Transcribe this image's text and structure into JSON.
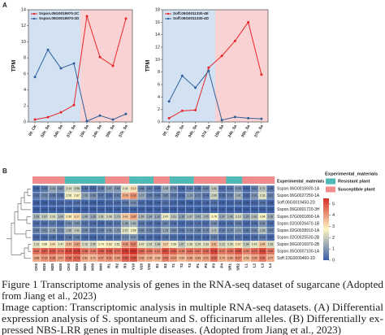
{
  "panels": [
    "A",
    "B"
  ],
  "chart_data": [
    {
      "type": "line",
      "categories": [
        "00_CK",
        "02h_Sa",
        "04h_Sa",
        "07d_Sa",
        "15h_Sa",
        "24h_Sa",
        "30h_Sa",
        "37h_Sa"
      ],
      "series": [
        {
          "name": "Sspon.05G0019970-2C",
          "color": "#e8262a",
          "values": [
            0.3,
            0.6,
            1.2,
            2.1,
            13.2,
            8.1,
            7.0,
            12.9
          ]
        },
        {
          "name": "Sspon.05G0019970-2D",
          "color": "#2f5f9a",
          "values": [
            5.6,
            9.0,
            6.7,
            7.3,
            0.1,
            0.8,
            0.3,
            1.0
          ]
        }
      ],
      "ylabel": "TPM",
      "ylim": [
        0,
        14
      ],
      "yticks": [
        0,
        2,
        4,
        6,
        8,
        10,
        12,
        14
      ],
      "background_colors": [
        "#d3e2f2",
        "#f9d3d3"
      ]
    },
    {
      "type": "line",
      "categories": [
        "00_CK",
        "02h_Sa",
        "04h_Sa",
        "07d_Sa",
        "15h_Sa",
        "24h_Sa",
        "30h_Sa",
        "37h_Sa"
      ],
      "series": [
        {
          "name": "Soff.05G0011330-4E",
          "color": "#e8262a",
          "values": [
            0.6,
            1.8,
            1.9,
            8.7,
            10.6,
            13.0,
            16.0,
            7.6
          ]
        },
        {
          "name": "Soff.05G0011330-4D",
          "color": "#2f5f9a",
          "values": [
            3.3,
            7.4,
            5.5,
            8.2,
            0.3,
            0.8,
            0.6,
            0.5
          ]
        }
      ],
      "ylabel": "TPM",
      "ylim": [
        0,
        18
      ],
      "yticks": [
        0,
        2,
        4,
        6,
        8,
        10,
        12,
        14,
        16,
        18
      ],
      "background_colors": [
        "#d3e2f2",
        "#f9d3d3"
      ]
    },
    {
      "type": "heatmap",
      "rows": [
        "Sspon.06G0016930-1A",
        "Sspon.06G0027250-1A",
        "Soff.06G0019450-2D",
        "Sspon.06G0001720-3H",
        "Sspon.07G0001800-1A",
        "Sspon.02G0026470-1B",
        "Sspon.02G0028910-1A",
        "Sspon.02G0025530-2B",
        "Sspon.06G0016970-2B",
        "Sspon.05G0007100-1A",
        "Soff.10G0000460-1D"
      ],
      "columns": [
        "CK0",
        "M10",
        "M20",
        "M30",
        "CK0",
        "M10",
        "M20",
        "M30",
        "M40",
        "R1",
        "R2",
        "R3",
        "V10",
        "V20",
        "V30",
        "E1",
        "E2",
        "T1",
        "T2",
        "T3",
        "P1",
        "P2",
        "P3",
        "P4",
        "SR1",
        "SR2",
        "L1",
        "L2",
        "L3",
        "L4"
      ],
      "values": [
        [
          0.12,
          0.45,
          1.23,
          0.87,
          2.14,
          1.96,
          0.33,
          0.21,
          0.58,
          1.07,
          0.94,
          2.41,
          3.12,
          0.66,
          0.47,
          0.29,
          1.38,
          0.75,
          0.18,
          0.52,
          0.36,
          0.69,
          1.84,
          0.27,
          0.41,
          0.93,
          0.15,
          0.62,
          1.71,
          0.38
        ],
        [
          0.41,
          0.73,
          0.55,
          0.39,
          2.56,
          2.87,
          1.19,
          0.88,
          0.47,
          0.34,
          0.62,
          3.78,
          4.18,
          1.27,
          0.59,
          0.46,
          0.82,
          0.53,
          0.24,
          1.13,
          0.71,
          0.44,
          2.06,
          0.35,
          0.57,
          1.41,
          0.28,
          0.91,
          2.33,
          0.67
        ],
        [
          0.08,
          0.06,
          0.11,
          0.13,
          0.27,
          0.35,
          0.16,
          0.09,
          0.07,
          0.19,
          0.24,
          0.48,
          0.83,
          0.21,
          0.12,
          0.14,
          0.31,
          0.17,
          0.05,
          0.09,
          0.11,
          0.18,
          0.36,
          0.07,
          0.13,
          0.26,
          0.04,
          0.15,
          0.42,
          0.08
        ],
        [
          0.02,
          0.01,
          0.03,
          0.02,
          0.07,
          0.05,
          0.01,
          0.02,
          0.04,
          0.03,
          0.06,
          0.11,
          0.09,
          0.02,
          0.01,
          0.03,
          0.05,
          0.02,
          0.01,
          0.04,
          0.02,
          0.03,
          0.08,
          0.01,
          0.02,
          0.06,
          0.01,
          0.03,
          0.07,
          0.02
        ],
        [
          1.52,
          1.87,
          2.23,
          1.64,
          2.95,
          3.17,
          1.46,
          1.28,
          1.91,
          2.06,
          1.73,
          3.41,
          3.86,
          1.59,
          1.34,
          1.22,
          2.47,
          1.81,
          1.16,
          1.67,
          1.43,
          1.55,
          2.78,
          1.37,
          1.49,
          2.19,
          1.26,
          1.62,
          2.64,
          1.39
        ],
        [
          0.26,
          0.31,
          0.47,
          0.22,
          0.81,
          0.93,
          0.37,
          0.28,
          0.19,
          0.33,
          0.41,
          1.26,
          1.54,
          0.43,
          0.32,
          0.25,
          0.67,
          0.38,
          0.17,
          0.29,
          0.34,
          0.27,
          0.86,
          0.23,
          0.31,
          0.58,
          0.18,
          0.36,
          0.91,
          0.24
        ],
        [
          0.64,
          0.92,
          1.18,
          0.73,
          1.66,
          1.92,
          0.84,
          0.57,
          0.69,
          0.96,
          1.03,
          2.27,
          2.58,
          0.89,
          0.72,
          0.61,
          1.29,
          0.83,
          0.52,
          0.76,
          0.68,
          0.79,
          1.71,
          0.63,
          0.74,
          1.14,
          0.56,
          0.81,
          1.63,
          0.67
        ],
        [
          0.19,
          0.24,
          0.35,
          0.17,
          0.46,
          0.58,
          0.23,
          0.14,
          0.21,
          0.28,
          0.32,
          0.74,
          0.97,
          0.26,
          0.22,
          0.16,
          0.39,
          0.27,
          0.13,
          0.25,
          0.21,
          0.18,
          0.53,
          0.15,
          0.23,
          0.37,
          0.12,
          0.26,
          0.49,
          0.17
        ],
        [
          2.31,
          2.68,
          3.04,
          2.47,
          3.52,
          3.83,
          2.19,
          2.06,
          2.74,
          2.93,
          2.51,
          4.06,
          4.37,
          2.42,
          2.16,
          1.98,
          3.27,
          2.59,
          1.87,
          2.36,
          2.24,
          2.33,
          3.61,
          2.12,
          2.28,
          2.97,
          1.94,
          2.45,
          3.46,
          2.18
        ],
        [
          4.62,
          4.87,
          4.93,
          4.71,
          5.12,
          5.26,
          4.58,
          4.49,
          4.83,
          4.96,
          4.77,
          5.31,
          5.43,
          4.69,
          4.54,
          4.41,
          5.07,
          4.81,
          4.36,
          4.63,
          4.57,
          4.66,
          5.18,
          4.47,
          4.59,
          4.98,
          4.33,
          4.72,
          5.14,
          4.52
        ],
        [
          3.86,
          4.13,
          4.28,
          3.97,
          4.56,
          4.74,
          3.81,
          3.72,
          4.07,
          4.21,
          3.99,
          4.83,
          4.95,
          3.92,
          3.78,
          3.66,
          4.43,
          4.04,
          3.59,
          3.88,
          3.83,
          3.91,
          4.62,
          3.74,
          3.86,
          4.27,
          3.56,
          3.96,
          4.51,
          3.77
        ]
      ],
      "clim": [
        0,
        5.5
      ],
      "cticks": [
        0,
        1,
        2,
        3,
        4,
        5
      ],
      "colors": [
        "#3a5fa8",
        "#fbf6c2",
        "#d62f27"
      ],
      "annotation": {
        "title": "Experimental_materials",
        "items": [
          {
            "name": "Resistant plant",
            "color": "#4fbab6"
          },
          {
            "name": "Susceptible plant",
            "color": "#f08c8c"
          }
        ],
        "groups": [
          1,
          1,
          1,
          1,
          0,
          0,
          0,
          0,
          0,
          1,
          1,
          1,
          0,
          0,
          0,
          1,
          1,
          0,
          0,
          0,
          1,
          1,
          1,
          1,
          0,
          0,
          1,
          1,
          1,
          1
        ]
      }
    }
  ],
  "caption": {
    "lines": [
      "Figure 1 Transcriptome analysis of genes in the RNA-seq dataset of sugarcane (Adopted",
      "from Jiang et al., 2023)",
      "Image caption: Transcriptomic analysis in multiple RNA-seq datasets. (A) Differential",
      "expression analysis of S. spontaneum and S. officinarum alleles. (B) Differentially ex-",
      "pressed NBS-LRR genes in multiple diseases. (Adopted from Jiang et al., 2023)"
    ]
  }
}
